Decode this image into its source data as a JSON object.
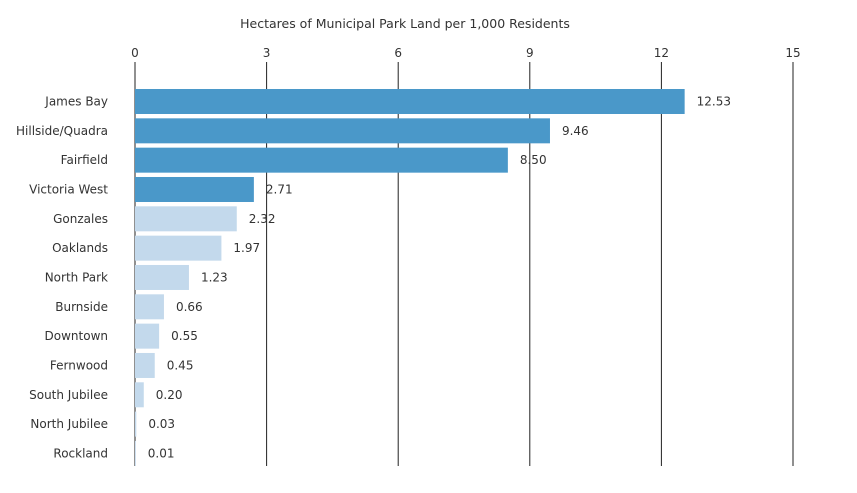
{
  "chart_data": {
    "type": "bar",
    "orientation": "horizontal",
    "title": "Hectares of Municipal Park Land per 1,000 Residents",
    "xlabel": "",
    "ylabel": "",
    "xlim": [
      0,
      15
    ],
    "xticks": [
      0,
      3,
      6,
      9,
      12,
      15
    ],
    "xtick_labels": [
      "0",
      "3",
      "6",
      "9",
      "12",
      "15"
    ],
    "axis_position": "top",
    "grid": "vertical lines at x ticks",
    "legend": "none",
    "categories": [
      "James Bay",
      "Hillside/Quadra",
      "Fairfield",
      "Victoria West",
      "Gonzales",
      "Oaklands",
      "North Park",
      "Burnside",
      "Downtown",
      "Fernwood",
      "South Jubilee",
      "North Jubilee",
      "Rockland"
    ],
    "values": [
      12.53,
      9.46,
      8.5,
      2.71,
      2.32,
      1.97,
      1.23,
      0.66,
      0.55,
      0.45,
      0.2,
      0.03,
      0.01
    ],
    "value_labels": [
      "12.53",
      "9.46",
      "8.50",
      "2.71",
      "2.32",
      "1.97",
      "1.23",
      "0.66",
      "0.55",
      "0.45",
      "0.20",
      "0.03",
      "0.01"
    ],
    "highlight_count": 4,
    "colors": {
      "highlight": "#4a98c9",
      "other": "#c3d9ec",
      "grid": "#222222"
    }
  }
}
